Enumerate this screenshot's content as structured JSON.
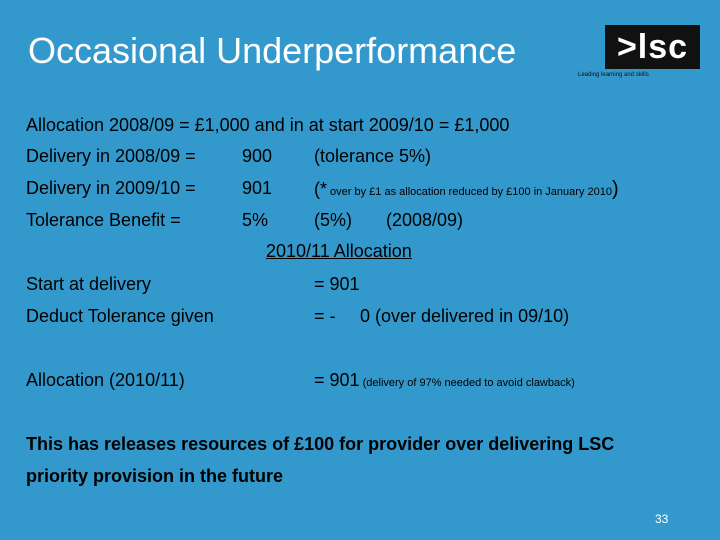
{
  "title": "Occasional Underperformance",
  "logo": {
    "mark": ">lsc",
    "tagline": "Leading learning and skills"
  },
  "allocation_line": "Allocation 2008/09 = £1,000 and in at start 2009/10 = £1,000",
  "rows": [
    {
      "label": "Delivery in 2008/09 =",
      "value": "900",
      "note": "(tolerance 5%)"
    },
    {
      "label": "Delivery in 2009/10 =",
      "value": "901",
      "note_prefix": "(*",
      "note_small": " over by £1 as allocation reduced by £100 in January 2010",
      "note_suffix": ")"
    },
    {
      "label": "Tolerance Benefit =",
      "value": "5%",
      "note": "(5%)",
      "note2": "(2008/09)"
    }
  ],
  "section_heading": "2010/11 Allocation",
  "calc": [
    {
      "label": "Start at delivery",
      "value": "=  901"
    },
    {
      "label": "Deduct Tolerance given",
      "value": "= -",
      "detail": "0 (over delivered in 09/10)"
    },
    {
      "label": "Allocation (2010/11)",
      "value": "= 901",
      "detail_small": " (delivery of 97% needed to avoid clawback)"
    }
  ],
  "conclusion_line1": "This has releases resources of £100 for provider over delivering LSC",
  "conclusion_line2": "priority provision in the future",
  "page_number": "33"
}
